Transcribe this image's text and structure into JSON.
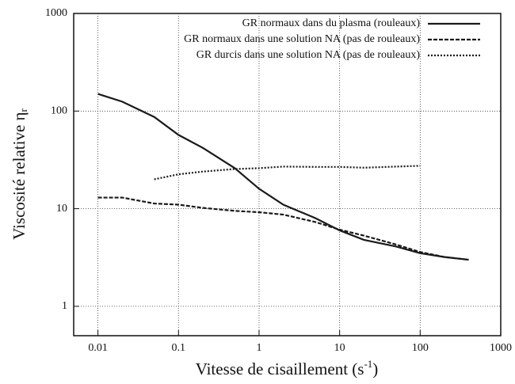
{
  "chart_data": {
    "type": "line",
    "xlabel": [
      "Vitesse de cisaillement (s",
      "-1",
      ")"
    ],
    "ylabel": [
      "Viscosité relative η",
      "r"
    ],
    "xscale": "log",
    "yscale": "log",
    "grid": true,
    "legend": "top-right",
    "xlim": [
      0.005,
      1000
    ],
    "xticks": [
      0.01,
      0.1,
      1,
      10,
      100,
      1000
    ],
    "ylim": [
      0.5,
      1000
    ],
    "yticks": [
      1,
      10,
      100,
      1000
    ],
    "series": [
      {
        "name": "GR normaux dans du plasma (rouleaux)",
        "color": "#1a1a1a",
        "style": "solid",
        "x": [
          0.01,
          0.02,
          0.05,
          0.1,
          0.2,
          0.5,
          1,
          2,
          5,
          10,
          20,
          50,
          100,
          200,
          400
        ],
        "values": [
          150,
          125,
          87,
          57,
          42,
          26,
          16,
          11,
          8,
          6,
          4.8,
          4.1,
          3.5,
          3.2,
          3.0
        ]
      },
      {
        "name": "GR normaux dans une solution NA (pas de rouleaux)",
        "color": "#1a1a1a",
        "style": "dashed",
        "x": [
          0.01,
          0.02,
          0.05,
          0.1,
          0.2,
          0.5,
          1,
          2,
          5,
          10,
          20,
          50,
          100,
          200,
          400
        ],
        "values": [
          13,
          13,
          11.3,
          11,
          10.2,
          9.5,
          9.2,
          8.7,
          7.3,
          6.1,
          5.3,
          4.3,
          3.6,
          3.2,
          3.0
        ]
      },
      {
        "name": "GR durcis dans une solution NA (pas de rouleaux)",
        "color": "#1a1a1a",
        "style": "dotted",
        "x": [
          0.05,
          0.1,
          0.2,
          0.5,
          1,
          2,
          5,
          10,
          20,
          50,
          100
        ],
        "values": [
          20,
          22.5,
          24,
          25.5,
          26,
          27,
          26.8,
          26.8,
          26.3,
          27,
          27.5
        ]
      }
    ]
  }
}
